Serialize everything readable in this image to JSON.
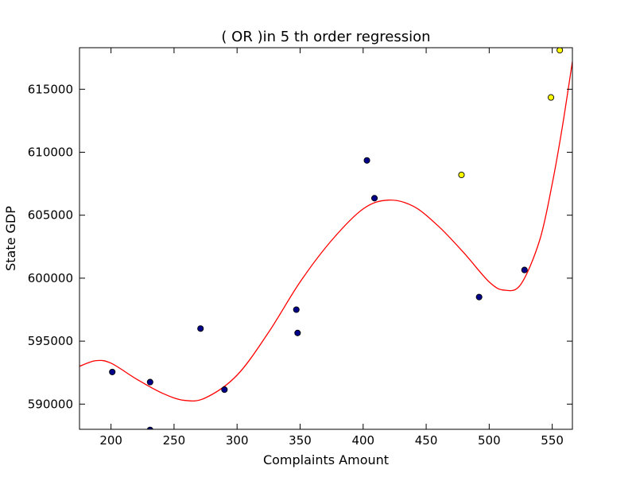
{
  "chart_data": {
    "type": "scatter",
    "title": "(  OR  )in 5 th order regression",
    "xlabel": "Complaints Amount",
    "ylabel": "State GDP",
    "xlim": [
      175,
      566
    ],
    "ylim": [
      588000,
      618300
    ],
    "xticks": [
      200,
      250,
      300,
      350,
      400,
      450,
      500,
      550
    ],
    "yticks": [
      590000,
      595000,
      600000,
      605000,
      610000,
      615000
    ],
    "grid": false,
    "series": [
      {
        "kind": "scatter",
        "color": "#00008b",
        "points": [
          [
            201,
            592550
          ],
          [
            231,
            591750
          ],
          [
            231,
            587950
          ],
          [
            271,
            596000
          ],
          [
            290,
            591150
          ],
          [
            347,
            597500
          ],
          [
            348,
            595650
          ],
          [
            403,
            609350
          ],
          [
            409,
            606350
          ],
          [
            492,
            598500
          ],
          [
            528,
            600650
          ]
        ]
      },
      {
        "kind": "scatter",
        "color": "#ffff00",
        "points": [
          [
            478,
            608200
          ],
          [
            549,
            614350
          ],
          [
            556,
            618100
          ]
        ]
      },
      {
        "kind": "line",
        "color": "#ff0000",
        "points": [
          [
            175,
            593000
          ],
          [
            188,
            593450
          ],
          [
            200,
            593250
          ],
          [
            220,
            592000
          ],
          [
            240,
            590900
          ],
          [
            258,
            590300
          ],
          [
            275,
            590500
          ],
          [
            300,
            592300
          ],
          [
            325,
            595700
          ],
          [
            350,
            599700
          ],
          [
            375,
            603000
          ],
          [
            400,
            605500
          ],
          [
            420,
            606200
          ],
          [
            440,
            605700
          ],
          [
            460,
            604100
          ],
          [
            480,
            602000
          ],
          [
            500,
            599700
          ],
          [
            512,
            599050
          ],
          [
            525,
            599500
          ],
          [
            540,
            603000
          ],
          [
            550,
            607500
          ],
          [
            558,
            612000
          ],
          [
            566,
            617200
          ]
        ]
      }
    ]
  }
}
